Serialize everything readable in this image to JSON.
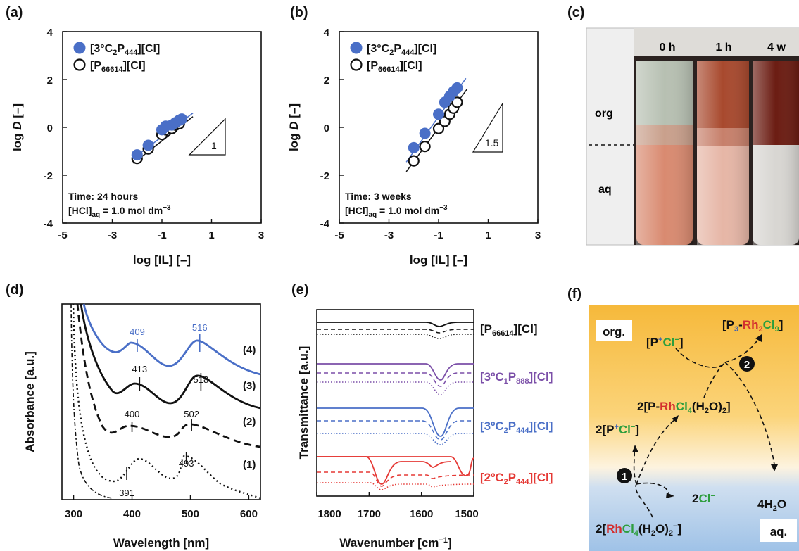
{
  "panels": {
    "a": "(a)",
    "b": "(b)",
    "c": "(c)",
    "d": "(d)",
    "e": "(e)",
    "f": "(f)"
  },
  "legend": {
    "s1_pre": "[3°C",
    "s1_sub1": "2",
    "s1_mid": "P",
    "s1_sub2": "444",
    "s1_post": "][Cl]",
    "s2_pre": "[P",
    "s2_sub": "66614",
    "s2_post": "][Cl]"
  },
  "chart_data": [
    {
      "id": "a",
      "type": "scatter",
      "xlabel": "log [IL] [–]",
      "ylabel_pre": "log ",
      "ylabel_var": "D",
      "ylabel_post": " [–]",
      "xlim": [
        -5,
        3
      ],
      "ylim": [
        -4,
        4
      ],
      "xticks": [
        "-5",
        "-3",
        "-1",
        "1",
        "3"
      ],
      "yticks": [
        "-4",
        "-2",
        "0",
        "2",
        "4"
      ],
      "series": [
        {
          "name": "[3°C2P444][Cl]",
          "marker": "filled",
          "color": "#4a6fc7",
          "x": [
            -2.0,
            -1.55,
            -1.0,
            -0.85,
            -0.6,
            -0.45,
            -0.3,
            -0.2
          ],
          "y": [
            -1.15,
            -0.75,
            -0.1,
            0.05,
            0.1,
            0.2,
            0.3,
            0.35
          ],
          "fit": [
            [
              -2.15,
              -1.3
            ],
            [
              0.25,
              0.6
            ]
          ]
        },
        {
          "name": "[P66614][Cl]",
          "marker": "open",
          "color": "#111111",
          "x": [
            -2.0,
            -1.55,
            -1.0,
            -0.85,
            -0.6,
            -0.45,
            -0.3
          ],
          "y": [
            -1.3,
            -0.9,
            -0.3,
            -0.1,
            -0.05,
            0.1,
            0.15
          ],
          "fit": [
            [
              -2.15,
              -1.5
            ],
            [
              0.25,
              0.45
            ]
          ]
        }
      ],
      "slope_label": "1",
      "time_label": "Time: 24 hours",
      "hcl_pre": "[HCl]",
      "hcl_sub": "aq",
      "hcl_post": " = 1.0 mol dm",
      "hcl_exp": "−3"
    },
    {
      "id": "b",
      "type": "scatter",
      "xlabel": "log [IL] [–]",
      "ylabel_pre": "log ",
      "ylabel_var": "D",
      "ylabel_post": " [–]",
      "xlim": [
        -5,
        3
      ],
      "ylim": [
        -4,
        4
      ],
      "xticks": [
        "-5",
        "-3",
        "-1",
        "1",
        "3"
      ],
      "yticks": [
        "-4",
        "-2",
        "0",
        "2",
        "4"
      ],
      "series": [
        {
          "name": "[3°C2P444][Cl]",
          "marker": "filled",
          "color": "#4a6fc7",
          "x": [
            -2.0,
            -1.55,
            -1.0,
            -0.75,
            -0.55,
            -0.4,
            -0.25
          ],
          "y": [
            -0.85,
            -0.25,
            0.55,
            1.05,
            1.3,
            1.5,
            1.65
          ],
          "fit": [
            [
              -2.3,
              -1.45
            ],
            [
              0.1,
              2.05
            ]
          ]
        },
        {
          "name": "[P66614][Cl]",
          "marker": "open",
          "color": "#111111",
          "x": [
            -2.0,
            -1.55,
            -1.0,
            -0.75,
            -0.55,
            -0.4,
            -0.25
          ],
          "y": [
            -1.4,
            -0.8,
            -0.05,
            0.25,
            0.55,
            0.8,
            1.05
          ],
          "fit": [
            [
              -2.3,
              -1.85
            ],
            [
              0.15,
              1.6
            ]
          ]
        }
      ],
      "slope_label": "1.5",
      "time_label": "Time: 3 weeks",
      "hcl_pre": "[HCl]",
      "hcl_sub": "aq",
      "hcl_post": " = 1.0 mol dm",
      "hcl_exp": "−3"
    },
    {
      "id": "d",
      "type": "line",
      "xlabel": "Wavelength [nm]",
      "ylabel": "Absorbance [a.u.]",
      "xlim": [
        280,
        620
      ],
      "xticks": [
        300,
        400,
        500,
        600
      ],
      "series": [
        {
          "name": "(4)",
          "color": "#4a6fc7",
          "style": "solid",
          "peaks": [
            409,
            516
          ]
        },
        {
          "name": "(3)",
          "color": "#111111",
          "style": "solid",
          "peaks": [
            413,
            518
          ]
        },
        {
          "name": "(2)",
          "color": "#111111",
          "style": "dashed",
          "peaks": [
            400,
            502
          ]
        },
        {
          "name": "(1)",
          "color": "#111111",
          "style": "dotted",
          "peaks": [
            391,
            493
          ]
        }
      ]
    },
    {
      "id": "e",
      "type": "line",
      "xlabel": "Wavenumber [cm",
      "xlabel_exp": "−1",
      "xlabel_post": "]",
      "ylabel": "Transmittance [a.u.]",
      "xlim": [
        1800,
        1500
      ],
      "xticks": [
        1800,
        1700,
        1600,
        1500
      ],
      "groups": [
        {
          "pre": "[P",
          "sub": "66614",
          "post": "][Cl]",
          "color": "#111111"
        },
        {
          "pre": "[3ºC",
          "sub": "1",
          "mid": "P",
          "sub2": "888",
          "post": "][Cl]",
          "color": "#7b4fa8"
        },
        {
          "pre": "[3ºC",
          "sub": "2",
          "mid": "P",
          "sub2": "444",
          "post": "][Cl]",
          "color": "#4a6fc7"
        },
        {
          "pre": "[2ºC",
          "sub": "2",
          "mid": "P",
          "sub2": "444",
          "post": "][Cl]",
          "color": "#e53935"
        }
      ]
    }
  ],
  "photo": {
    "times": [
      "0 h",
      "1 h",
      "4 w"
    ],
    "phase_org": "org",
    "phase_aq": "aq"
  },
  "scheme": {
    "org": "org.",
    "aq": "aq.",
    "p_cl_pre": "[P",
    "p_plus": "+",
    "p_cl": "Cl",
    "p_minus": "−",
    "p_cl_post": "]",
    "p3_pre": "[P",
    "p3_sub": "3",
    "p3_dash": "-",
    "p3_rh": "Rh",
    "p3_rhsub": "2",
    "p3_cl": "Cl",
    "p3_clsub": "9",
    "p3_post": "]",
    "mid_pre": "2[P-",
    "mid_rh": "Rh",
    "mid_cl": "Cl",
    "mid_clsub": "4",
    "mid_h2o": "(H",
    "mid_h2osub": "2",
    "mid_post": "O)",
    "mid_post2": "2",
    "mid_close": "]",
    "left_pre": "2[P",
    "left_plus": "+",
    "left_cl": "Cl",
    "left_minus": "−",
    "left_close": "]",
    "cl_pre": "2",
    "cl": "Cl",
    "cl_minus": "−",
    "h2o_pre": "4H",
    "h2o_sub": "2",
    "h2o_post": "O",
    "bot_pre": "2[",
    "bot_rh": "Rh",
    "bot_cl": "Cl",
    "bot_clsub": "4",
    "bot_h2o": "(H",
    "bot_h2osub": "2",
    "bot_o": "O)",
    "bot_2": "2",
    "bot_minus": "−",
    "bot_close": "]",
    "step1": "1",
    "step2": "2",
    "colors": {
      "blue": "#3b5fb5",
      "red": "#d32f2f",
      "green": "#2e9e3e"
    }
  }
}
